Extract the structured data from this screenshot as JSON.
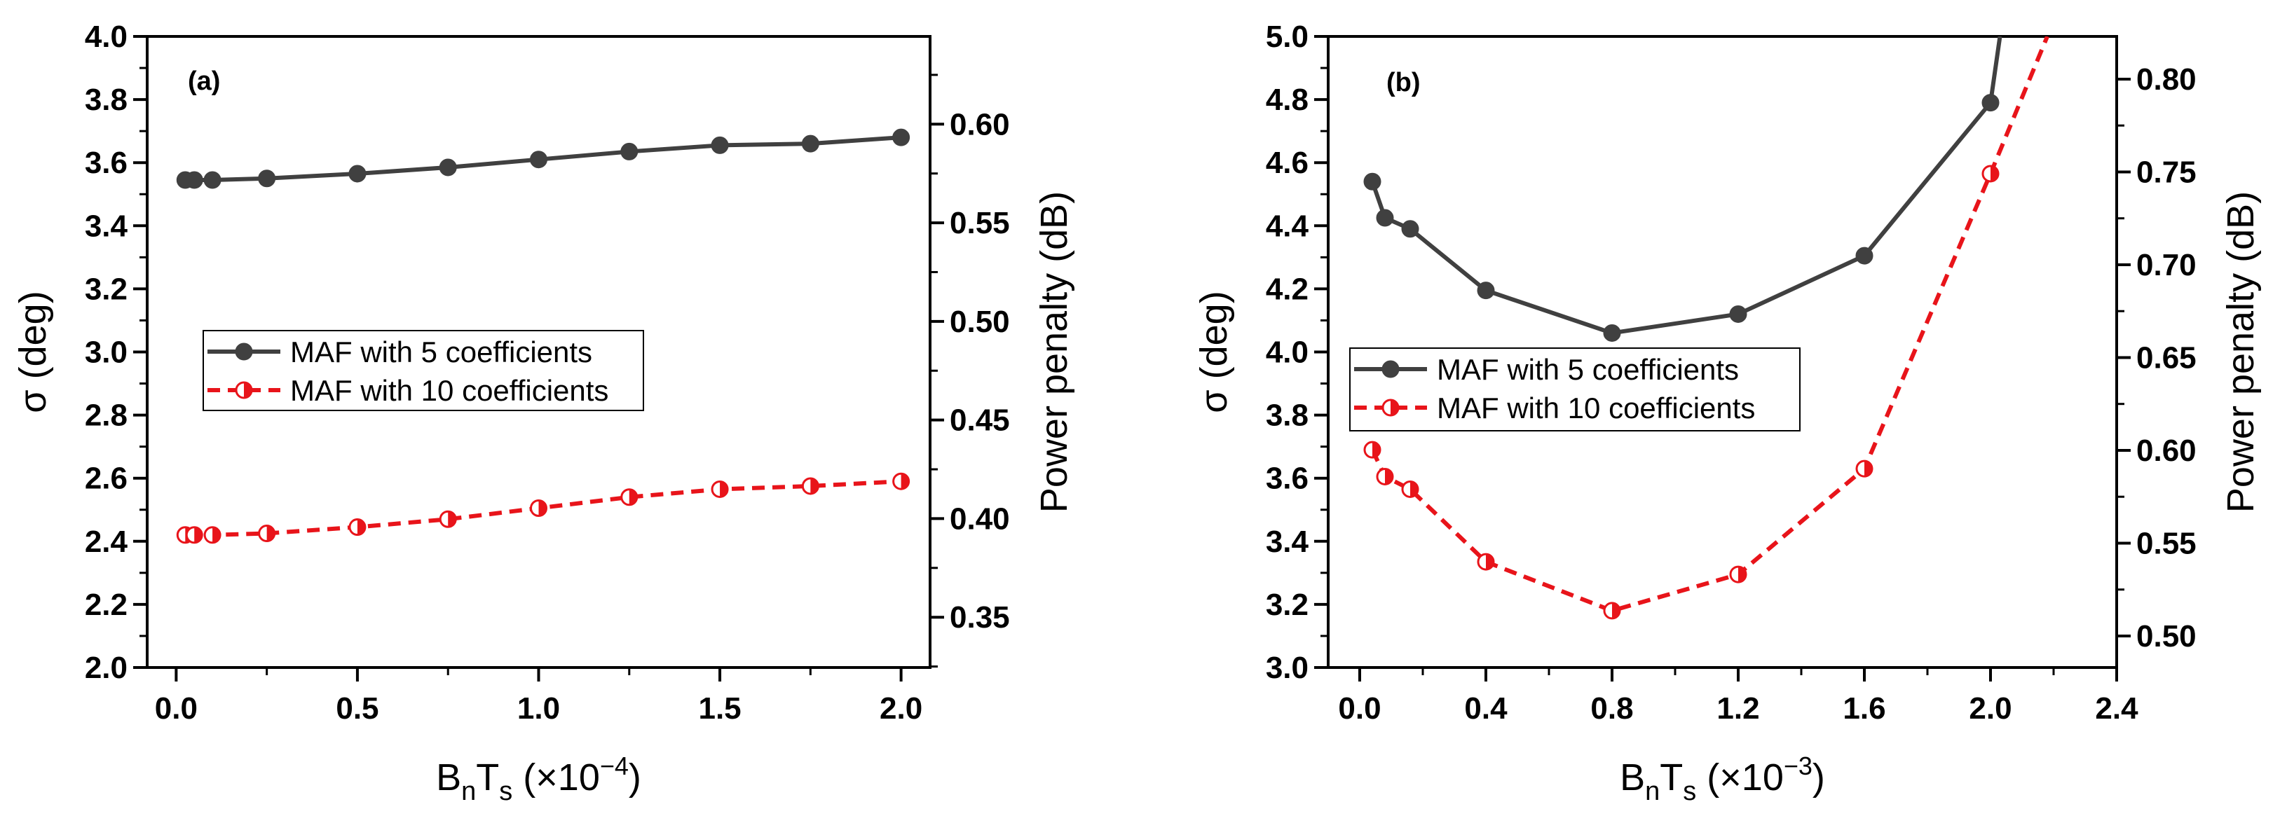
{
  "chart_data": [
    {
      "type": "line",
      "panel_label": "(a)",
      "x": [
        0.025,
        0.05,
        0.1,
        0.25,
        0.5,
        0.75,
        1.0,
        1.25,
        1.5,
        1.75,
        2.0
      ],
      "series": [
        {
          "name": "MAF with 5 coefficients",
          "axis": "left",
          "style": "solid",
          "color": "#404040",
          "marker": "filled-circle",
          "values": [
            3.545,
            3.545,
            3.545,
            3.55,
            3.565,
            3.585,
            3.61,
            3.635,
            3.655,
            3.66,
            3.68
          ]
        },
        {
          "name": "MAF with 10 coefficients",
          "axis": "left",
          "style": "dashed",
          "color": "#e8141a",
          "marker": "half-filled-circle",
          "values": [
            2.42,
            2.42,
            2.42,
            2.425,
            2.445,
            2.47,
            2.505,
            2.54,
            2.565,
            2.575,
            2.59
          ]
        }
      ],
      "xlabel": {
        "base": "B",
        "sub1": "n",
        "mid": "T",
        "sub2": "s",
        "scale": " (×10",
        "exp": "−4",
        "close": ")"
      },
      "ylabel": "σ (deg)",
      "y2label": "Power penalty (dB)",
      "xlim": [
        -0.08,
        2.08
      ],
      "ylim": [
        2.0,
        4.0
      ],
      "y2lim": [
        0.3245,
        0.6445
      ],
      "xticks": [
        0.0,
        0.5,
        1.0,
        1.5,
        2.0
      ],
      "xtick_labels": [
        "0.0",
        "0.5",
        "1.0",
        "1.5",
        "2.0"
      ],
      "yticks": [
        2.0,
        2.2,
        2.4,
        2.6,
        2.8,
        3.0,
        3.2,
        3.4,
        3.6,
        3.8,
        4.0
      ],
      "ytick_labels": [
        "2.0",
        "2.2",
        "2.4",
        "2.6",
        "2.8",
        "3.0",
        "3.2",
        "3.4",
        "3.6",
        "3.8",
        "4.0"
      ],
      "y2ticks": [
        0.35,
        0.4,
        0.45,
        0.5,
        0.55,
        0.6
      ],
      "y2tick_labels": [
        "0.35",
        "0.40",
        "0.45",
        "0.50",
        "0.55",
        "0.60"
      ],
      "legend_position": "center-left"
    },
    {
      "type": "line",
      "panel_label": "(b)",
      "x": [
        0.04,
        0.08,
        0.16,
        0.4,
        0.8,
        1.2,
        1.6,
        2.0
      ],
      "series": [
        {
          "name": "MAF with 5 coefficients",
          "axis": "left",
          "style": "solid",
          "color": "#404040",
          "marker": "filled-circle",
          "values": [
            4.54,
            4.425,
            4.39,
            4.195,
            4.06,
            4.12,
            4.305,
            4.79
          ],
          "trailing_segment_to": [
            2.03,
            5.0
          ]
        },
        {
          "name": "MAF with 10 coefficients",
          "axis": "left",
          "style": "dashed",
          "color": "#e8141a",
          "marker": "half-filled-circle",
          "values": [
            3.69,
            3.605,
            3.565,
            3.335,
            3.18,
            3.295,
            3.63,
            4.565
          ],
          "trailing_segment_to": [
            2.18,
            5.0
          ]
        }
      ],
      "xlabel": {
        "base": "B",
        "sub1": "n",
        "mid": "T",
        "sub2": "s",
        "scale": " (×10",
        "exp": "−3",
        "close": ")"
      },
      "ylabel": "σ (deg)",
      "y2label": "Power penalty (dB)",
      "xlim": [
        -0.1,
        2.4
      ],
      "ylim": [
        3.0,
        5.0
      ],
      "y2lim": [
        0.483,
        0.823
      ],
      "xticks": [
        0.0,
        0.4,
        0.8,
        1.2,
        1.6,
        2.0,
        2.4
      ],
      "xtick_labels": [
        "0.0",
        "0.4",
        "0.8",
        "1.2",
        "1.6",
        "2.0",
        "2.4"
      ],
      "yticks": [
        3.0,
        3.2,
        3.4,
        3.6,
        3.8,
        4.0,
        4.2,
        4.4,
        4.6,
        4.8,
        5.0
      ],
      "ytick_labels": [
        "3.0",
        "3.2",
        "3.4",
        "3.6",
        "3.8",
        "4.0",
        "4.2",
        "4.4",
        "4.6",
        "4.8",
        "5.0"
      ],
      "y2ticks": [
        0.5,
        0.55,
        0.6,
        0.65,
        0.7,
        0.75,
        0.8
      ],
      "y2tick_labels": [
        "0.50",
        "0.55",
        "0.60",
        "0.65",
        "0.70",
        "0.75",
        "0.80"
      ],
      "legend_position": "center-left"
    }
  ]
}
